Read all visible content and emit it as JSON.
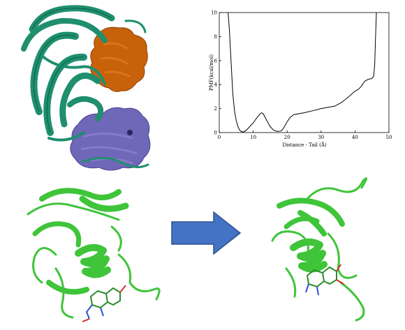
{
  "chart_data": {
    "type": "line",
    "xlabel": "Distance - Tail (Å)",
    "ylabel": "PMF(kcal/mol)",
    "xlim": [
      0,
      50
    ],
    "ylim": [
      0,
      10
    ],
    "xticks": [
      0,
      10,
      20,
      30,
      40,
      50
    ],
    "yticks": [
      0,
      2,
      4,
      6,
      8,
      10
    ],
    "grid": false,
    "series": [
      {
        "x": [
          2.6,
          3.0,
          3.5,
          4.0,
          4.5,
          5.0,
          5.5,
          6.0,
          6.5,
          7.0,
          7.5,
          8.0,
          8.5,
          9.0,
          10.0,
          11.0,
          12.0,
          12.5,
          13.0,
          14.0,
          15.0,
          16.0,
          17.0,
          18.0,
          18.5,
          19.0,
          20.0,
          21.0,
          22.0,
          25.0,
          28.0,
          30.0,
          32.0,
          34.0,
          36.0,
          38.0,
          40.0,
          41.0,
          42.0,
          42.5,
          43.0,
          44.0,
          45.0,
          45.5,
          45.8,
          46.0,
          46.3
        ],
        "y": [
          10.0,
          8.5,
          5.8,
          3.2,
          1.8,
          1.0,
          0.5,
          0.2,
          0.08,
          0.05,
          0.1,
          0.2,
          0.35,
          0.5,
          0.8,
          1.2,
          1.55,
          1.65,
          1.55,
          1.0,
          0.5,
          0.2,
          0.1,
          0.12,
          0.2,
          0.4,
          0.9,
          1.3,
          1.5,
          1.65,
          1.85,
          2.0,
          2.1,
          2.2,
          2.5,
          2.95,
          3.45,
          3.6,
          3.9,
          4.15,
          4.3,
          4.45,
          4.5,
          4.7,
          5.6,
          7.5,
          10.0
        ]
      }
    ]
  }
}
